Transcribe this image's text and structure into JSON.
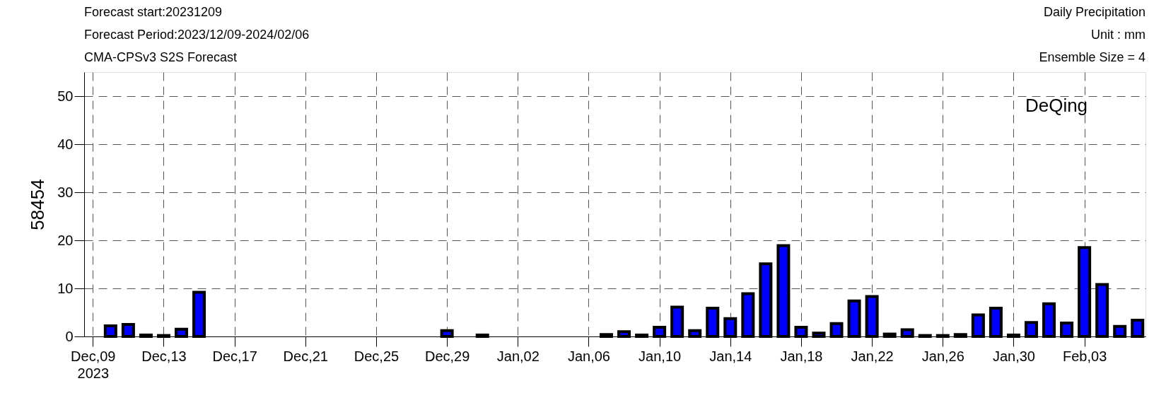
{
  "chart_data": {
    "type": "bar",
    "annotations": [
      "Forecast start:20231209",
      "Forecast Period:2023/12/09-2024/02/06",
      "CMA-CPSv3 S2S Forecast",
      "Daily Precipitation",
      "Unit : mm",
      "Ensemble Size = 4",
      "DeQing"
    ],
    "ylabel": "58454",
    "x": [
      "2023-12-10",
      "2023-12-11",
      "2023-12-12",
      "2023-12-13",
      "2023-12-14",
      "2023-12-15",
      "2023-12-16",
      "2023-12-17",
      "2023-12-18",
      "2023-12-19",
      "2023-12-20",
      "2023-12-21",
      "2023-12-22",
      "2023-12-23",
      "2023-12-24",
      "2023-12-25",
      "2023-12-26",
      "2023-12-27",
      "2023-12-28",
      "2023-12-29",
      "2023-12-30",
      "2023-12-31",
      "2024-01-01",
      "2024-01-02",
      "2024-01-03",
      "2024-01-04",
      "2024-01-05",
      "2024-01-06",
      "2024-01-07",
      "2024-01-08",
      "2024-01-09",
      "2024-01-10",
      "2024-01-11",
      "2024-01-12",
      "2024-01-13",
      "2024-01-14",
      "2024-01-15",
      "2024-01-16",
      "2024-01-17",
      "2024-01-18",
      "2024-01-19",
      "2024-01-20",
      "2024-01-21",
      "2024-01-22",
      "2024-01-23",
      "2024-01-24",
      "2024-01-25",
      "2024-01-26",
      "2024-01-27",
      "2024-01-28",
      "2024-01-29",
      "2024-01-30",
      "2024-01-31",
      "2024-02-01",
      "2024-02-02",
      "2024-02-03",
      "2024-02-04",
      "2024-02-05",
      "2024-02-06"
    ],
    "series": [
      {
        "color": "#0000ff",
        "values": [
          2.2,
          2.5,
          0.3,
          0.2,
          1.5,
          9.2,
          0,
          0,
          0,
          0,
          0,
          0,
          0,
          0,
          0,
          0,
          0,
          0,
          0,
          1.2,
          0,
          0.3,
          0,
          0,
          0,
          0,
          0,
          0,
          0.4,
          1.0,
          0.3,
          1.9,
          6.1,
          1.2,
          5.9,
          3.7,
          8.9,
          15.1,
          18.9,
          1.9,
          0.7,
          2.7,
          7.4,
          8.3,
          0.5,
          1.4,
          0.2,
          0.2,
          0.4,
          4.5,
          5.9,
          0.3,
          2.9,
          6.8,
          2.8,
          18.5,
          10.8,
          2.1,
          3.4
        ]
      }
    ],
    "xlim": [
      "2023-12-08T17:00",
      "2024-02-06T06:00"
    ],
    "xticks": [
      {
        "value": "2023-12-09",
        "label": "Dec,09\n2023"
      },
      {
        "value": "2023-12-13",
        "label": "Dec,13"
      },
      {
        "value": "2023-12-17",
        "label": "Dec,17"
      },
      {
        "value": "2023-12-21",
        "label": "Dec,21"
      },
      {
        "value": "2023-12-25",
        "label": "Dec,25"
      },
      {
        "value": "2023-12-29",
        "label": "Dec,29"
      },
      {
        "value": "2024-01-02",
        "label": "Jan,02"
      },
      {
        "value": "2024-01-06",
        "label": "Jan,06"
      },
      {
        "value": "2024-01-10",
        "label": "Jan,10"
      },
      {
        "value": "2024-01-14",
        "label": "Jan,14"
      },
      {
        "value": "2024-01-18",
        "label": "Jan,18"
      },
      {
        "value": "2024-01-22",
        "label": "Jan,22"
      },
      {
        "value": "2024-01-26",
        "label": "Jan,26"
      },
      {
        "value": "2024-01-30",
        "label": "Jan,30"
      },
      {
        "value": "2024-02-03",
        "label": "Feb,03"
      }
    ],
    "ylim": [
      0,
      55
    ],
    "yticks": [
      0,
      10,
      20,
      30,
      40,
      50
    ],
    "grid": true
  }
}
